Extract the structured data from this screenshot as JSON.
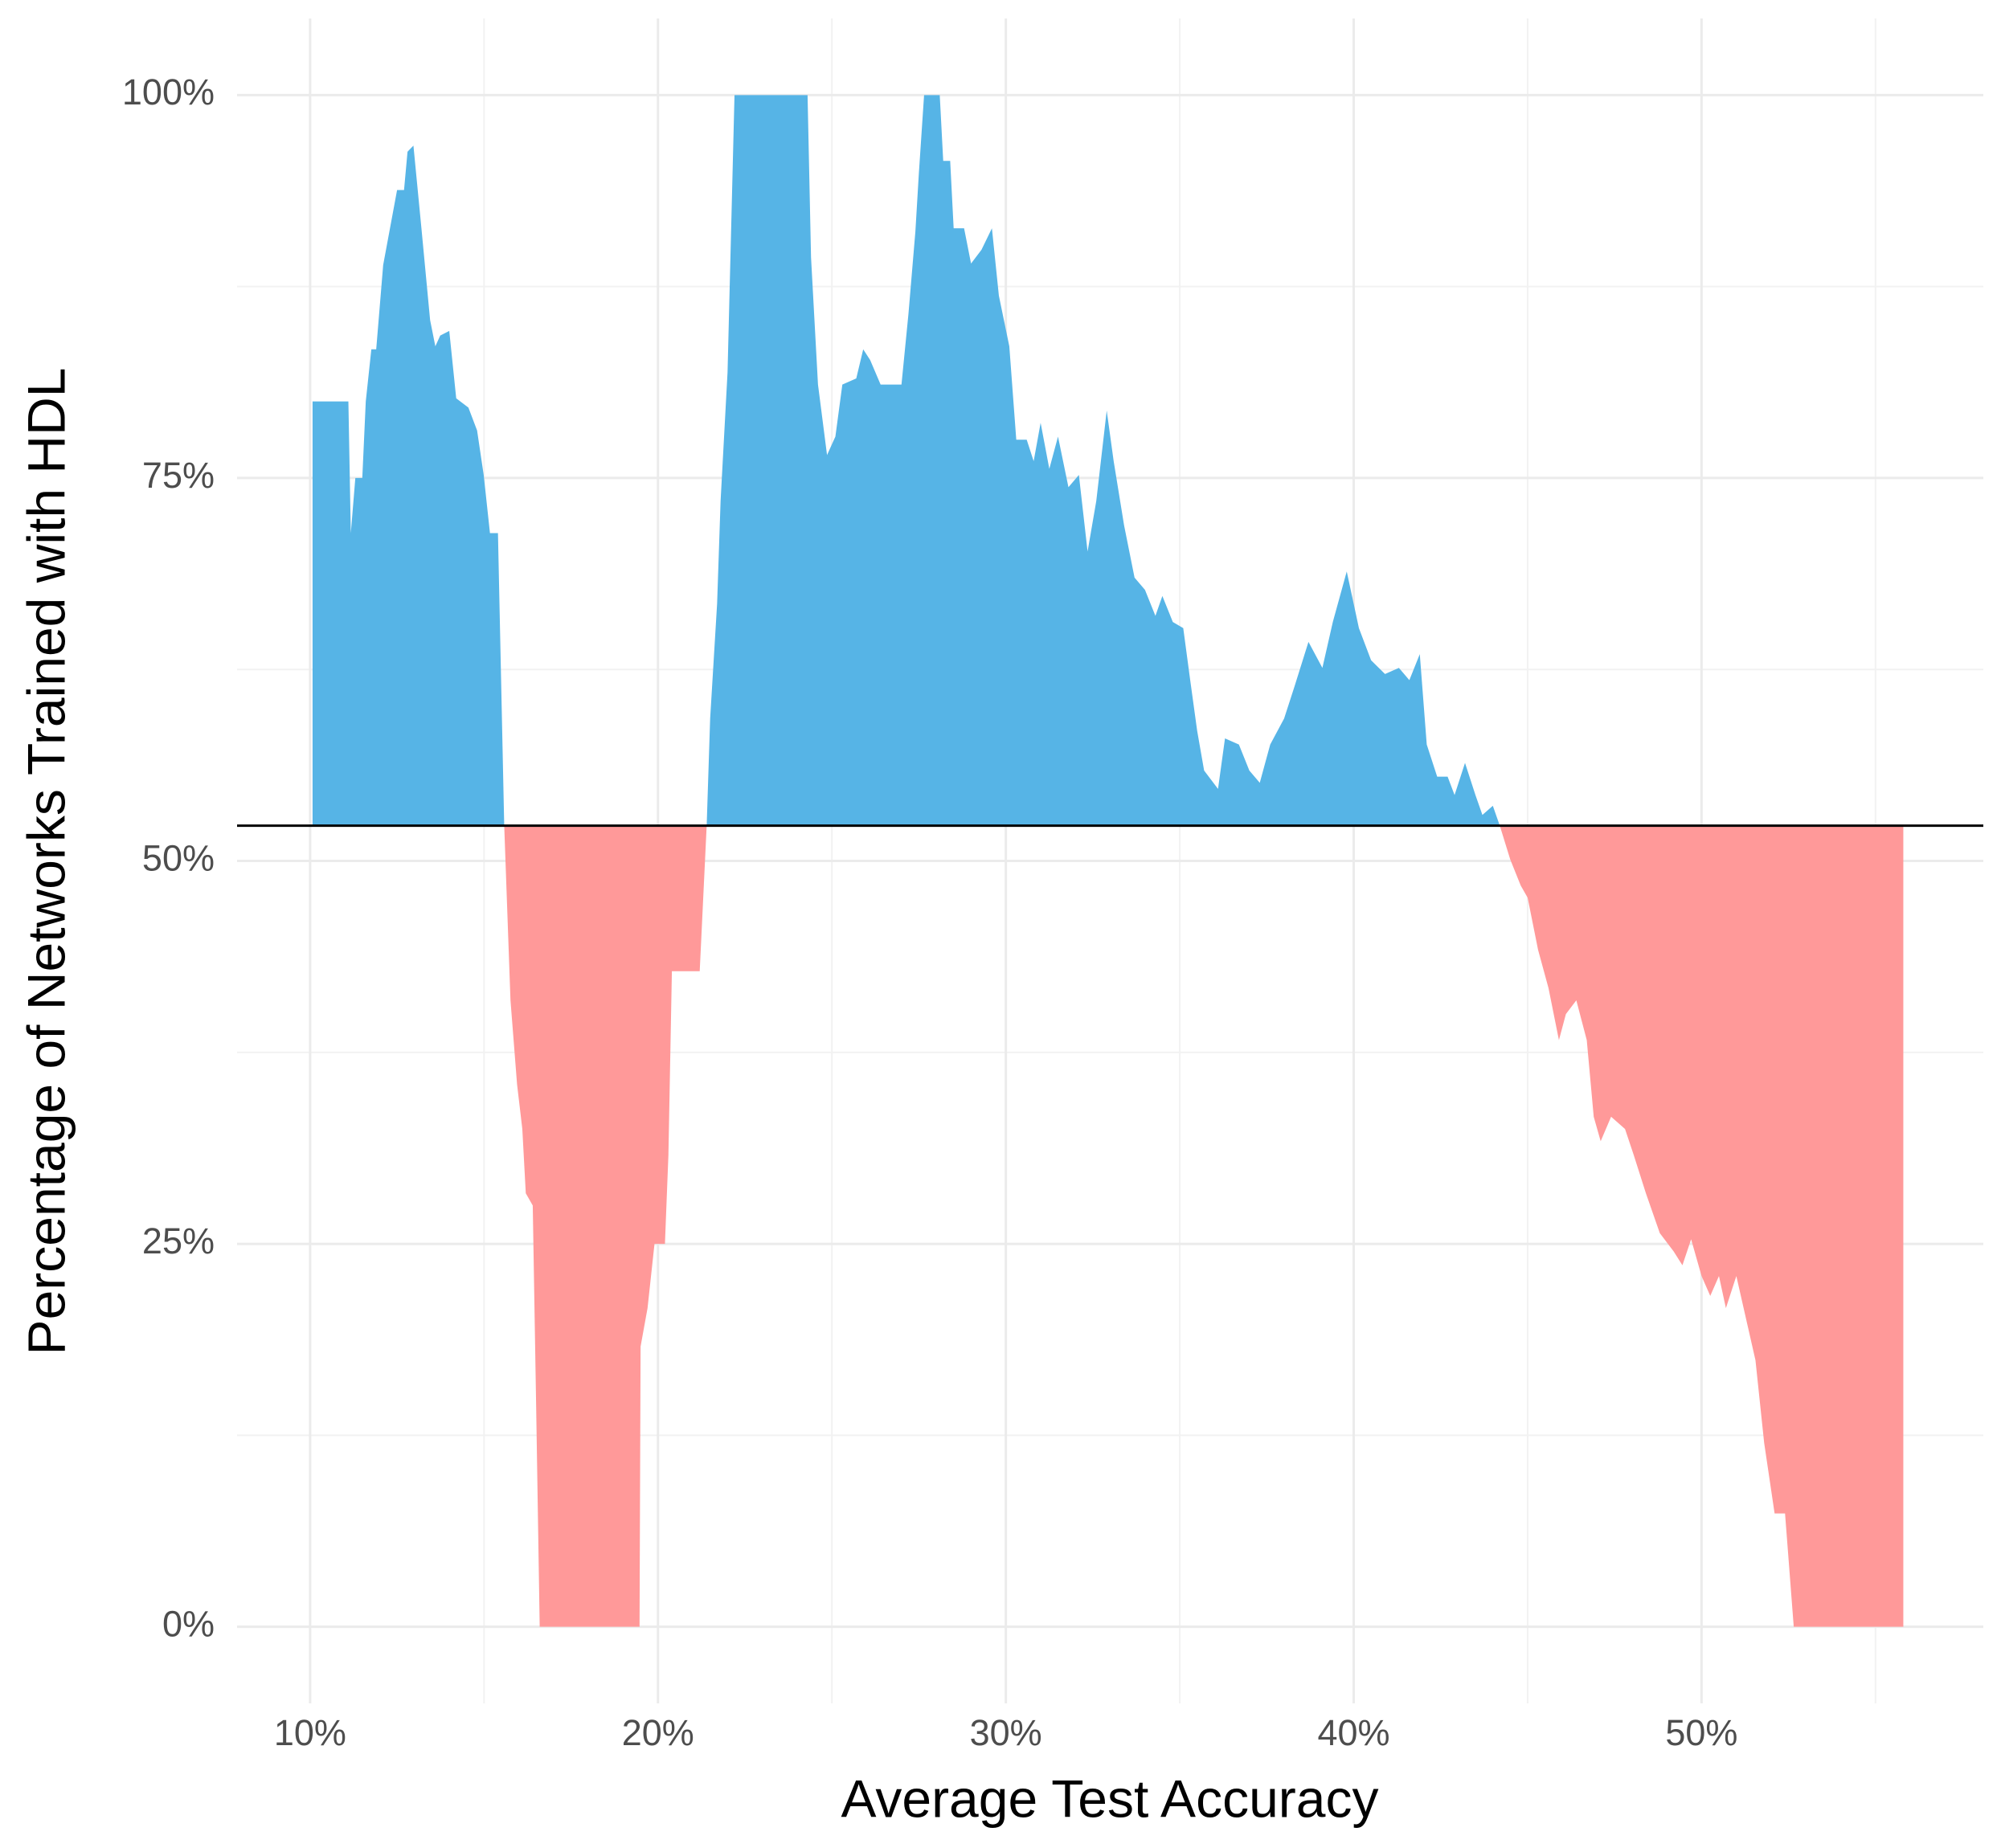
{
  "chart_data": {
    "type": "area",
    "x_label": "Average Test Accuracy",
    "y_label": "Percentage of  Networks Trained with HDL",
    "xlim": [
      7.9,
      58.1
    ],
    "ylim": [
      -5,
      105
    ],
    "xticks": [
      {
        "value": 10,
        "label": "10%"
      },
      {
        "value": 20,
        "label": "20%"
      },
      {
        "value": 30,
        "label": "30%"
      },
      {
        "value": 40,
        "label": "40%"
      },
      {
        "value": 50,
        "label": "50%"
      }
    ],
    "yticks": [
      {
        "value": 0,
        "label": "0%"
      },
      {
        "value": 25,
        "label": "25%"
      },
      {
        "value": 50,
        "label": "50%"
      },
      {
        "value": 75,
        "label": "75%"
      },
      {
        "value": 100,
        "label": "100%"
      }
    ],
    "xminor": [
      15,
      25,
      35,
      45,
      55
    ],
    "yminor": [
      12.5,
      37.5,
      62.5,
      87.5
    ],
    "grid": true,
    "baseline": 52.3,
    "color_above": "#56b4e6",
    "color_below": "#ff9999",
    "x": [
      10.07,
      11.1,
      11.17,
      11.3,
      11.5,
      11.6,
      11.76,
      11.9,
      12.1,
      12.5,
      12.7,
      12.8,
      12.97,
      13.2,
      13.45,
      13.6,
      13.74,
      14.0,
      14.2,
      14.55,
      14.8,
      14.99,
      15.17,
      15.4,
      15.58,
      15.76,
      15.95,
      16.1,
      16.2,
      16.4,
      16.5,
      16.6,
      19.47,
      19.5,
      19.7,
      19.9,
      20.2,
      20.3,
      20.4,
      21.2,
      21.4,
      21.5,
      21.7,
      21.8,
      22.0,
      22.2,
      24.3,
      24.4,
      24.6,
      24.86,
      25.1,
      25.3,
      25.7,
      25.9,
      26.1,
      26.4,
      27.0,
      27.2,
      27.4,
      27.5,
      27.65,
      28.1,
      28.2,
      28.4,
      28.5,
      28.8,
      29.0,
      29.3,
      29.6,
      29.8,
      30.1,
      30.3,
      30.6,
      30.8,
      31.0,
      31.25,
      31.5,
      31.8,
      32.1,
      32.35,
      32.6,
      32.9,
      33.1,
      33.4,
      33.7,
      34.0,
      34.3,
      34.5,
      34.8,
      35.1,
      35.3,
      35.5,
      35.7,
      36.1,
      36.3,
      36.7,
      37.0,
      37.3,
      37.6,
      38.0,
      38.3,
      38.7,
      39.1,
      39.4,
      39.8,
      40.15,
      40.5,
      40.9,
      41.3,
      41.6,
      41.9,
      42.1,
      42.4,
      42.7,
      42.9,
      43.2,
      43.5,
      43.7,
      44.0,
      44.2,
      44.5,
      44.8,
      45.0,
      45.3,
      45.6,
      45.9,
      46.1,
      46.4,
      46.7,
      46.9,
      47.1,
      47.4,
      47.8,
      48.05,
      48.4,
      48.8,
      49.2,
      49.45,
      49.7,
      50.0,
      50.25,
      50.5,
      50.7,
      51.0,
      51.3,
      51.55,
      51.8,
      52.1,
      52.4,
      52.65,
      55.8
    ],
    "values": [
      80.0,
      80.0,
      71.4,
      75.0,
      75.0,
      80.0,
      83.4,
      83.4,
      88.9,
      93.8,
      93.8,
      96.3,
      96.7,
      91.3,
      85.3,
      83.6,
      84.3,
      84.6,
      80.2,
      79.6,
      78.1,
      75.2,
      71.4,
      71.4,
      52.3,
      40.9,
      35.4,
      32.5,
      28.3,
      27.5,
      14.1,
      0,
      0,
      18.3,
      20.8,
      25.0,
      25.0,
      30.8,
      42.8,
      42.8,
      52.3,
      59.3,
      66.8,
      73.5,
      81.9,
      100,
      100,
      89.4,
      81.1,
      76.5,
      77.7,
      81.1,
      81.5,
      83.4,
      82.7,
      81.1,
      81.1,
      85.7,
      91.1,
      94.9,
      100,
      100,
      95.7,
      95.7,
      91.3,
      91.3,
      89.0,
      89.9,
      91.3,
      86.9,
      83.6,
      77.5,
      77.5,
      76.1,
      78.6,
      75.6,
      77.7,
      74.4,
      75.2,
      70.2,
      73.5,
      79.4,
      76.1,
      71.9,
      68.5,
      67.7,
      66.0,
      67.3,
      65.6,
      65.2,
      61.8,
      58.5,
      55.9,
      54.7,
      58.0,
      57.6,
      55.9,
      55.1,
      57.6,
      59.3,
      61.4,
      64.3,
      62.6,
      65.6,
      68.9,
      65.2,
      63.1,
      62.2,
      62.6,
      61.8,
      63.5,
      57.6,
      55.5,
      55.5,
      54.3,
      56.4,
      54.3,
      53.0,
      53.6,
      52.3,
      50.1,
      48.4,
      47.6,
      44.2,
      41.7,
      38.3,
      40.0,
      40.9,
      38.3,
      33.3,
      31.7,
      33.3,
      32.5,
      30.8,
      28.3,
      25.7,
      24.5,
      23.6,
      25.3,
      22.9,
      21.6,
      22.9,
      20.8,
      22.9,
      19.9,
      17.4,
      12.0,
      7.4,
      7.4,
      0,
      0
    ]
  }
}
